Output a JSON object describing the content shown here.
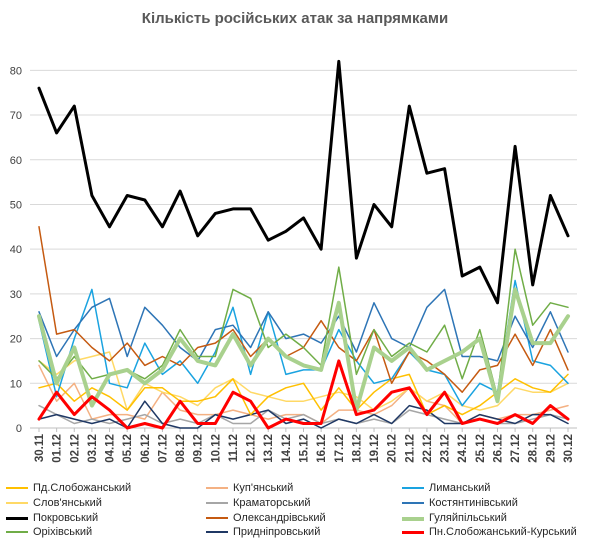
{
  "chart_data": {
    "type": "line",
    "title": "Кількість російських атак за напрямками",
    "xlabel": "",
    "ylabel": "",
    "ylim": [
      0,
      85
    ],
    "yticks": [
      0,
      10,
      20,
      30,
      40,
      50,
      60,
      70,
      80
    ],
    "grid": true,
    "legend_position": "bottom",
    "categories": [
      "30.11",
      "01.12",
      "02.12",
      "03.12",
      "04.12",
      "05.12",
      "06.12",
      "07.12",
      "08.12",
      "09.12",
      "10.12",
      "11.12",
      "12.12",
      "13.12",
      "14.12",
      "15.12",
      "16.12",
      "17.12",
      "18.12",
      "19.12",
      "20.12",
      "21.12",
      "22.12",
      "23.12",
      "24.12",
      "25.12",
      "26.12",
      "27.12",
      "28.12",
      "29.12",
      "30.12"
    ],
    "series": [
      {
        "name": "Пд.Слобожанський",
        "color": "#ffc000",
        "width": 1.5,
        "values": [
          9,
          10,
          6,
          9,
          7,
          4,
          9,
          9,
          6,
          6,
          7,
          11,
          3,
          7,
          9,
          10,
          4,
          9,
          4,
          8,
          11,
          12,
          3,
          5,
          3,
          5,
          8,
          11,
          9,
          8,
          12
        ]
      },
      {
        "name": "Куп'янський",
        "color": "#f4b183",
        "width": 1.5,
        "values": [
          14,
          6,
          10,
          2,
          3,
          3,
          2,
          8,
          4,
          3,
          3,
          4,
          3,
          2,
          3,
          3,
          1,
          4,
          4,
          3,
          5,
          9,
          6,
          5,
          1,
          3,
          2,
          3,
          3,
          4,
          5
        ]
      },
      {
        "name": "Лиманський",
        "color": "#1aa3e0",
        "width": 1.5,
        "values": [
          24,
          7,
          20,
          31,
          10,
          9,
          19,
          12,
          15,
          10,
          17,
          27,
          12,
          26,
          12,
          13,
          13,
          22,
          15,
          10,
          11,
          17,
          13,
          12,
          5,
          10,
          8,
          33,
          15,
          14,
          10
        ]
      },
      {
        "name": "Слов'янський",
        "color": "#ffd966",
        "width": 1.5,
        "values": [
          15,
          12,
          15,
          16,
          17,
          4,
          10,
          8,
          7,
          5,
          9,
          11,
          8,
          7,
          6,
          6,
          7,
          8,
          7,
          4,
          6,
          9,
          6,
          8,
          5,
          4,
          5,
          9,
          8,
          8,
          10
        ]
      },
      {
        "name": "Краматорський",
        "color": "#a6a6a6",
        "width": 1.5,
        "values": [
          5,
          3,
          1,
          2,
          1,
          2,
          3,
          1,
          2,
          1,
          3,
          1,
          1,
          4,
          2,
          3,
          1,
          2,
          1,
          2,
          1,
          4,
          3,
          2,
          1,
          2,
          1,
          1,
          2,
          3,
          2
        ]
      },
      {
        "name": "Костянтинівський",
        "color": "#2e75b6",
        "width": 1.5,
        "values": [
          26,
          16,
          22,
          27,
          29,
          16,
          27,
          23,
          18,
          15,
          22,
          23,
          18,
          26,
          20,
          21,
          19,
          25,
          17,
          28,
          20,
          18,
          27,
          31,
          16,
          16,
          15,
          25,
          18,
          26,
          17
        ]
      },
      {
        "name": "Покровський",
        "color": "#000000",
        "width": 3,
        "values": [
          76,
          66,
          72,
          52,
          45,
          52,
          51,
          45,
          53,
          43,
          48,
          49,
          49,
          42,
          44,
          47,
          40,
          82,
          38,
          50,
          45,
          72,
          57,
          58,
          34,
          36,
          28,
          63,
          32,
          52,
          43
        ]
      },
      {
        "name": "Олександрівський",
        "color": "#c55a11",
        "width": 1.5,
        "values": [
          45,
          21,
          22,
          18,
          15,
          19,
          14,
          16,
          14,
          18,
          19,
          22,
          16,
          20,
          16,
          18,
          24,
          18,
          15,
          22,
          10,
          17,
          15,
          12,
          8,
          13,
          14,
          21,
          14,
          22,
          13
        ]
      },
      {
        "name": "Гуляйпільський",
        "color": "#a9d18e",
        "width": 4,
        "values": [
          25,
          10,
          18,
          5,
          12,
          13,
          10,
          13,
          20,
          15,
          14,
          21,
          14,
          20,
          16,
          14,
          13,
          28,
          4,
          18,
          15,
          18,
          13,
          15,
          17,
          20,
          6,
          31,
          19,
          19,
          25
        ]
      },
      {
        "name": "Оріхівський",
        "color": "#70ad47",
        "width": 1.5,
        "values": [
          15,
          11,
          16,
          11,
          12,
          13,
          11,
          14,
          22,
          16,
          16,
          31,
          29,
          18,
          21,
          18,
          14,
          36,
          12,
          22,
          16,
          19,
          17,
          23,
          11,
          22,
          7,
          40,
          23,
          28,
          27
        ]
      },
      {
        "name": "Придніпровський",
        "color": "#1f3864",
        "width": 1.5,
        "values": [
          2,
          3,
          2,
          1,
          2,
          0,
          6,
          1,
          0,
          0,
          3,
          2,
          3,
          4,
          1,
          2,
          0,
          2,
          1,
          3,
          1,
          5,
          4,
          1,
          1,
          3,
          2,
          1,
          3,
          3,
          1
        ]
      },
      {
        "name": "Пн.Слобожанський-Курський",
        "color": "#ff0000",
        "width": 3,
        "values": [
          2,
          8,
          3,
          7,
          4,
          0,
          1,
          0,
          6,
          1,
          1,
          8,
          6,
          0,
          2,
          1,
          1,
          15,
          3,
          4,
          8,
          9,
          3,
          8,
          1,
          2,
          1,
          3,
          1,
          5,
          2
        ]
      }
    ]
  }
}
